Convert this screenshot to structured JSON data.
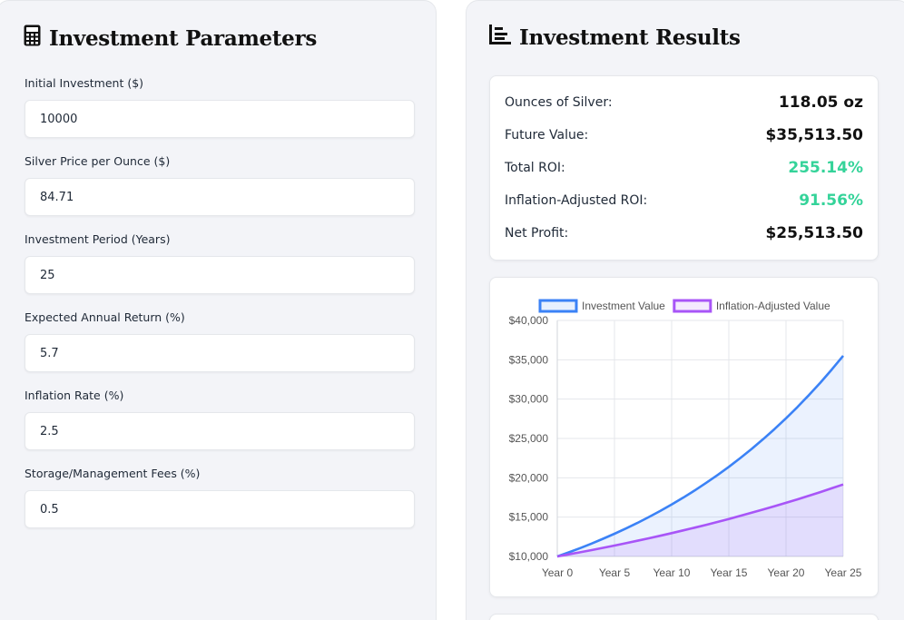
{
  "params": {
    "title": "Investment Parameters",
    "fields": [
      {
        "label": "Initial Investment ($)",
        "value": "10000"
      },
      {
        "label": "Silver Price per Ounce ($)",
        "value": "84.71"
      },
      {
        "label": "Investment Period (Years)",
        "value": "25"
      },
      {
        "label": "Expected Annual Return (%)",
        "value": "5.7"
      },
      {
        "label": "Inflation Rate (%)",
        "value": "2.5"
      },
      {
        "label": "Storage/Management Fees (%)",
        "value": "0.5"
      }
    ]
  },
  "results": {
    "title": "Investment Results",
    "rows": [
      {
        "label": "Ounces of Silver:",
        "value": "118.05 oz"
      },
      {
        "label": "Future Value:",
        "value": "$35,513.50"
      },
      {
        "label": "Total ROI:",
        "value": "255.14%"
      },
      {
        "label": "Inflation-Adjusted ROI:",
        "value": "91.56%"
      },
      {
        "label": "Net Profit:",
        "value": "$25,513.50"
      }
    ]
  },
  "icons": {
    "params": "calculator-icon",
    "results": "bar-chart-icon"
  },
  "colors": {
    "positive": "#34d399",
    "investment": "#3b82f6",
    "inflation": "#a855f7"
  },
  "chart_data": {
    "type": "area",
    "x": [
      0,
      1,
      2,
      3,
      4,
      5,
      6,
      7,
      8,
      9,
      10,
      11,
      12,
      13,
      14,
      15,
      16,
      17,
      18,
      19,
      20,
      21,
      22,
      23,
      24,
      25
    ],
    "x_ticks": [
      "Year 0",
      "Year 5",
      "Year 10",
      "Year 15",
      "Year 20",
      "Year 25"
    ],
    "y_ticks": [
      "$10,000",
      "$15,000",
      "$20,000",
      "$25,000",
      "$30,000",
      "$35,000",
      "$40,000"
    ],
    "ylim": [
      10000,
      40000
    ],
    "legend_position": "top",
    "grid": true,
    "series": [
      {
        "name": "Investment Value",
        "color": "#3b82f6",
        "values": [
          10000,
          10520,
          11067,
          11643,
          12248,
          12885,
          13555,
          14260,
          15002,
          15782,
          16603,
          17466,
          18374,
          19329,
          20335,
          21392,
          22504,
          23675,
          24906,
          26201,
          27563,
          28996,
          30504,
          32090,
          33759,
          35513
        ]
      },
      {
        "name": "Inflation-Adjusted Value",
        "color": "#a855f7",
        "values": [
          10000,
          10263,
          10534,
          10811,
          11096,
          11388,
          11688,
          11996,
          12312,
          12636,
          12969,
          13310,
          13661,
          14021,
          14390,
          14769,
          15158,
          15557,
          15967,
          16387,
          16819,
          17262,
          17716,
          18183,
          18662,
          19154
        ]
      }
    ]
  }
}
